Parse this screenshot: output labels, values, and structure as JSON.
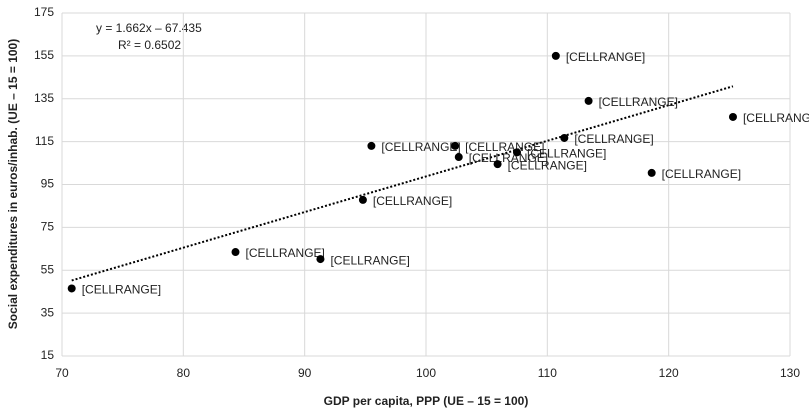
{
  "chart_data": {
    "type": "scatter",
    "x_label": "GDP per capita, PPP (UE – 15 = 100)",
    "y_label": "Social expenditures in euros/inhab. (UE – 15 = 100)",
    "x": [
      70.8,
      84.3,
      91.3,
      94.8,
      95.5,
      102.4,
      102.7,
      105.9,
      107.5,
      111.4,
      110.7,
      113.4,
      118.6,
      125.3
    ],
    "values": [
      46.5,
      63.5,
      60.2,
      87.8,
      113,
      113,
      107.8,
      104.5,
      110,
      116.7,
      155,
      134,
      100.4,
      126.5
    ],
    "point_labels": [
      "[CELLRANGE]",
      "[CELLRANGE]",
      "[CELLRANGE]",
      "[CELLRANGE]",
      "[CELLRANGE]",
      "[CELLRANGE]",
      "[CELLRANGE]",
      "[CELLRANGE]",
      "[CELLRANGE]",
      "[CELLRANGE]",
      "[CELLRANGE]",
      "[CELLRANGE]",
      "[CELLRANGE]",
      "[CELLRANGE]"
    ],
    "color": "#000000",
    "trendline": {
      "slope": 1.662,
      "intercept": -67.435,
      "equation": "y = 1.662x – 67.435",
      "r2_label": "R² = 0.6502"
    },
    "xlim": [
      70,
      130
    ],
    "xticks": [
      70,
      80,
      90,
      100,
      110,
      120,
      130
    ],
    "ylim": [
      15,
      175
    ],
    "yticks": [
      15,
      35,
      55,
      75,
      95,
      115,
      135,
      155,
      175
    ],
    "grid": true
  }
}
